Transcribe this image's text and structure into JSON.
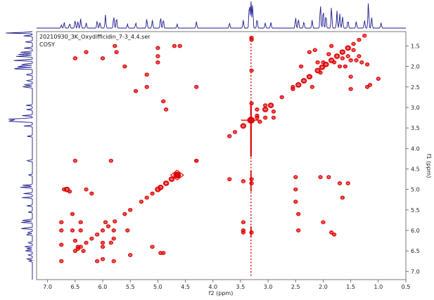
{
  "title": {
    "line1": "20210930_3K_Oxydifficidin_7-3_4.4.ser",
    "line2": "COSY"
  },
  "chart_data": {
    "type": "heatmap",
    "subtype": "2D NMR COSY contour plot",
    "xlabel": "f2 (ppm)",
    "ylabel": "f1 (ppm)",
    "xlim": [
      7.2,
      0.5
    ],
    "ylim": [
      7.2,
      1.15
    ],
    "x_reversed": true,
    "y_reversed": true,
    "xticks": [
      "7.0",
      "6.5",
      "6.0",
      "5.5",
      "5.0",
      "4.5",
      "4.0",
      "3.5",
      "3.0",
      "2.5",
      "2.0",
      "1.5",
      "1.0",
      "0.5"
    ],
    "yticks": [
      "1.5",
      "2.0",
      "2.5",
      "3.0",
      "3.5",
      "4.0",
      "4.5",
      "5.0",
      "5.5",
      "6.0",
      "6.5",
      "7.0"
    ],
    "colors": {
      "contour": "#dd0000",
      "projection": "#1a1a8c",
      "frame": "#555555"
    },
    "solvent_artifact_ppm": 3.31,
    "projection_peaks": [
      [
        6.75,
        0.12
      ],
      [
        6.7,
        0.22
      ],
      [
        6.6,
        0.18
      ],
      [
        6.5,
        0.3
      ],
      [
        6.45,
        0.25
      ],
      [
        6.4,
        0.35
      ],
      [
        6.3,
        0.2
      ],
      [
        6.1,
        0.28
      ],
      [
        6.05,
        0.22
      ],
      [
        5.95,
        0.5
      ],
      [
        5.8,
        0.45
      ],
      [
        5.75,
        0.4
      ],
      [
        5.55,
        0.15
      ],
      [
        5.4,
        0.2
      ],
      [
        5.2,
        0.35
      ],
      [
        5.1,
        0.3
      ],
      [
        4.95,
        0.42
      ],
      [
        4.9,
        0.35
      ],
      [
        4.65,
        0.15
      ],
      [
        4.3,
        0.25
      ],
      [
        3.7,
        0.2
      ],
      [
        3.45,
        0.3
      ],
      [
        3.34,
        0.95
      ],
      [
        3.31,
        1.0
      ],
      [
        3.28,
        0.9
      ],
      [
        3.2,
        0.35
      ],
      [
        3.05,
        0.2
      ],
      [
        2.95,
        0.22
      ],
      [
        2.5,
        0.4
      ],
      [
        2.45,
        0.35
      ],
      [
        2.35,
        0.25
      ],
      [
        2.2,
        0.3
      ],
      [
        2.05,
        0.9
      ],
      [
        2.0,
        0.7
      ],
      [
        1.95,
        0.5
      ],
      [
        1.85,
        0.8
      ],
      [
        1.75,
        0.65
      ],
      [
        1.7,
        0.55
      ],
      [
        1.65,
        0.45
      ],
      [
        1.55,
        0.3
      ],
      [
        1.4,
        0.25
      ],
      [
        1.25,
        0.3
      ],
      [
        1.18,
        0.98
      ],
      [
        1.12,
        0.4
      ],
      [
        0.95,
        0.2
      ]
    ],
    "peaks": [
      [
        6.75,
        6.75,
        1
      ],
      [
        6.5,
        6.5,
        1
      ],
      [
        6.45,
        6.45,
        1
      ],
      [
        6.4,
        6.4,
        1
      ],
      [
        6.3,
        6.3,
        1
      ],
      [
        6.2,
        6.2,
        1
      ],
      [
        6.1,
        6.1,
        1
      ],
      [
        6.0,
        6.0,
        1
      ],
      [
        5.9,
        5.9,
        1
      ],
      [
        5.78,
        5.78,
        1
      ],
      [
        5.6,
        5.6,
        1
      ],
      [
        5.5,
        5.5,
        1
      ],
      [
        5.3,
        5.3,
        1
      ],
      [
        5.2,
        5.2,
        1
      ],
      [
        5.1,
        5.1,
        1
      ],
      [
        5.0,
        5.0,
        2
      ],
      [
        4.95,
        4.95,
        2
      ],
      [
        4.85,
        4.85,
        2
      ],
      [
        4.75,
        4.75,
        2
      ],
      [
        4.65,
        4.65,
        3
      ],
      [
        4.3,
        4.3,
        1
      ],
      [
        3.7,
        3.7,
        1
      ],
      [
        3.6,
        3.6,
        1
      ],
      [
        3.45,
        3.45,
        2
      ],
      [
        3.31,
        3.31,
        3
      ],
      [
        3.2,
        3.2,
        1
      ],
      [
        3.05,
        3.05,
        2
      ],
      [
        2.95,
        2.95,
        2
      ],
      [
        2.75,
        2.75,
        1
      ],
      [
        2.55,
        2.55,
        1
      ],
      [
        2.45,
        2.45,
        2
      ],
      [
        2.35,
        2.35,
        2
      ],
      [
        2.25,
        2.25,
        2
      ],
      [
        2.1,
        2.1,
        2
      ],
      [
        2.02,
        2.02,
        2
      ],
      [
        1.95,
        1.95,
        2
      ],
      [
        1.85,
        1.85,
        2
      ],
      [
        1.75,
        1.75,
        2
      ],
      [
        1.65,
        1.65,
        2
      ],
      [
        1.55,
        1.55,
        2
      ],
      [
        1.45,
        1.45,
        1
      ],
      [
        1.35,
        1.35,
        1
      ],
      [
        1.25,
        1.25,
        1
      ],
      [
        6.75,
        5.8,
        1
      ],
      [
        6.75,
        6.0,
        1
      ],
      [
        6.75,
        6.35,
        1
      ],
      [
        6.7,
        5.0,
        1
      ],
      [
        6.65,
        5.0,
        2
      ],
      [
        6.6,
        5.05,
        1
      ],
      [
        6.55,
        5.6,
        1
      ],
      [
        6.55,
        6.0,
        1
      ],
      [
        6.5,
        6.25,
        1
      ],
      [
        6.45,
        6.4,
        1
      ],
      [
        6.4,
        5.8,
        1
      ],
      [
        6.4,
        6.0,
        1
      ],
      [
        6.35,
        6.5,
        1
      ],
      [
        6.3,
        5.0,
        1
      ],
      [
        6.2,
        5.1,
        1
      ],
      [
        6.1,
        6.75,
        1
      ],
      [
        6.0,
        6.4,
        1
      ],
      [
        6.0,
        6.7,
        1
      ],
      [
        6.0,
        6.3,
        1
      ],
      [
        5.95,
        5.8,
        1
      ],
      [
        5.85,
        6.3,
        1
      ],
      [
        5.8,
        6.75,
        1
      ],
      [
        5.8,
        6.0,
        1
      ],
      [
        5.8,
        6.2,
        1
      ],
      [
        5.78,
        1.5,
        1
      ],
      [
        5.75,
        1.65,
        1
      ],
      [
        5.6,
        2.0,
        1
      ],
      [
        5.55,
        6.0,
        1
      ],
      [
        5.5,
        6.6,
        1
      ],
      [
        5.4,
        2.6,
        1
      ],
      [
        5.2,
        2.2,
        1
      ],
      [
        5.2,
        2.5,
        1
      ],
      [
        5.1,
        6.4,
        1
      ],
      [
        5.0,
        1.75,
        1
      ],
      [
        5.0,
        1.9,
        1
      ],
      [
        4.95,
        6.55,
        1
      ],
      [
        4.9,
        6.55,
        1
      ],
      [
        4.9,
        2.85,
        1
      ],
      [
        4.85,
        3.05,
        1
      ],
      [
        6.0,
        1.8,
        1
      ],
      [
        6.3,
        1.65,
        1
      ],
      [
        6.5,
        1.8,
        1
      ],
      [
        4.3,
        2.5,
        1
      ],
      [
        4.3,
        4.3,
        1
      ],
      [
        6.5,
        4.3,
        1
      ],
      [
        5.85,
        4.3,
        1
      ],
      [
        3.7,
        4.75,
        1
      ],
      [
        3.45,
        4.8,
        1
      ],
      [
        3.45,
        5.8,
        1
      ],
      [
        3.45,
        6.0,
        1
      ],
      [
        3.45,
        6.05,
        1
      ],
      [
        2.5,
        4.7,
        1
      ],
      [
        2.5,
        5.0,
        1
      ],
      [
        2.5,
        5.3,
        1
      ],
      [
        2.45,
        5.6,
        1
      ],
      [
        2.45,
        6.0,
        1
      ],
      [
        2.05,
        4.7,
        1
      ],
      [
        2.0,
        5.8,
        1
      ],
      [
        1.9,
        4.7,
        1
      ],
      [
        1.85,
        6.05,
        1
      ],
      [
        1.8,
        6.1,
        1
      ],
      [
        1.7,
        4.85,
        1
      ],
      [
        1.65,
        5.2,
        1
      ],
      [
        1.55,
        4.85,
        1
      ],
      [
        1.5,
        2.25,
        1
      ],
      [
        1.5,
        2.55,
        1
      ],
      [
        1.2,
        2.5,
        1
      ],
      [
        1.15,
        2.45,
        1
      ],
      [
        1.0,
        2.3,
        1
      ],
      [
        2.55,
        2.5,
        1
      ],
      [
        2.4,
        2.0,
        1
      ],
      [
        2.2,
        2.5,
        1
      ],
      [
        2.1,
        1.9,
        1
      ],
      [
        2.05,
        2.15,
        1
      ],
      [
        2.0,
        1.9,
        1
      ],
      [
        1.9,
        1.7,
        1
      ],
      [
        1.85,
        1.5,
        1
      ],
      [
        1.8,
        1.9,
        1
      ],
      [
        1.7,
        2.0,
        1
      ],
      [
        1.65,
        1.8,
        1
      ],
      [
        1.6,
        2.0,
        1
      ],
      [
        1.55,
        1.75,
        1
      ],
      [
        1.5,
        1.85,
        1
      ],
      [
        1.45,
        1.6,
        1
      ],
      [
        1.4,
        1.85,
        1
      ],
      [
        1.35,
        1.75,
        1
      ],
      [
        1.3,
        1.9,
        1
      ],
      [
        1.2,
        1.95,
        1
      ],
      [
        2.25,
        1.65,
        1
      ],
      [
        2.15,
        1.6,
        1
      ],
      [
        3.05,
        3.25,
        1
      ],
      [
        3.2,
        3.05,
        1
      ],
      [
        3.3,
        2.9,
        1
      ],
      [
        3.05,
        2.95,
        1
      ],
      [
        3.2,
        3.25,
        1
      ],
      [
        3.15,
        3.35,
        1
      ],
      [
        2.9,
        3.25,
        1
      ],
      [
        2.9,
        3.1,
        1
      ],
      [
        3.3,
        1.3,
        1
      ],
      [
        3.3,
        1.35,
        1
      ],
      [
        3.3,
        2.1,
        1
      ],
      [
        3.3,
        4.75,
        1
      ],
      [
        3.3,
        4.85,
        1
      ],
      [
        3.3,
        6.05,
        1
      ],
      [
        4.6,
        1.5,
        1
      ],
      [
        4.7,
        1.5,
        1
      ],
      [
        5.0,
        1.55,
        1
      ]
    ]
  }
}
